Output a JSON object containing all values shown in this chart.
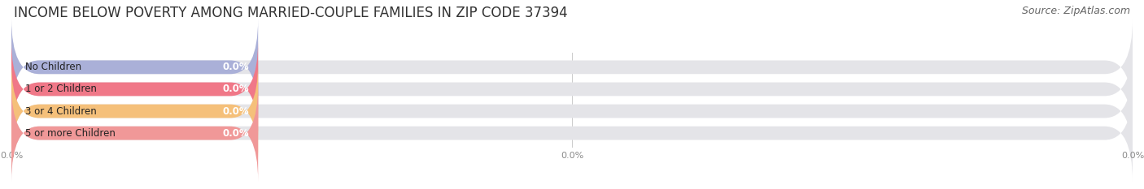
{
  "title": "INCOME BELOW POVERTY AMONG MARRIED-COUPLE FAMILIES IN ZIP CODE 37394",
  "source_text": "Source: ZipAtlas.com",
  "categories": [
    "No Children",
    "1 or 2 Children",
    "3 or 4 Children",
    "5 or more Children"
  ],
  "values": [
    0.0,
    0.0,
    0.0,
    0.0
  ],
  "bar_colors": [
    "#aab0d8",
    "#f07888",
    "#f5c07a",
    "#f09898"
  ],
  "bar_bg_color": "#e4e4e8",
  "background_color": "#ffffff",
  "xlim": [
    0,
    100
  ],
  "xtick_positions": [
    0.0,
    50.0,
    100.0
  ],
  "xtick_labels": [
    "0.0%",
    "0.0%",
    "0.0%"
  ],
  "title_fontsize": 12,
  "source_fontsize": 9,
  "label_fontsize": 8.5,
  "value_fontsize": 8.5,
  "bar_height": 0.62,
  "colored_bar_width": 22.0,
  "figsize": [
    14.06,
    2.33
  ],
  "dpi": 100
}
